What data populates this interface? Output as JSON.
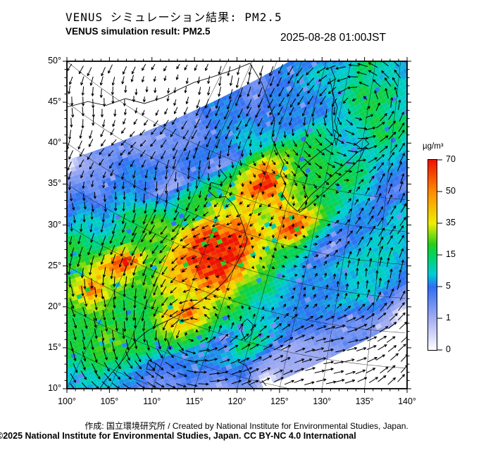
{
  "header": {
    "title_jp": "VENUS シミュレーション結果: PM2.5",
    "title_en": "VENUS simulation result: PM2.5",
    "datetime": "2025-08-28 01:00JST"
  },
  "footer": {
    "attribution": "作成: 国立環境研究所 / Created by National Institute for Environmental Studies, Japan.",
    "copyright": "©2025 National Institute for Environmental Studies, Japan. CC BY-NC 4.0 International"
  },
  "chart_data": {
    "type": "heatmap",
    "title": "VENUS simulation result: PM2.5",
    "variable": "PM2.5",
    "units": "µg/m³",
    "lon_range": [
      100,
      140
    ],
    "lat_range": [
      10,
      50
    ],
    "lon_tick_labels": [
      "100°",
      "105°",
      "110°",
      "115°",
      "120°",
      "125°",
      "130°",
      "135°",
      "140°"
    ],
    "lat_tick_labels": [
      "50°",
      "45°",
      "40°",
      "35°",
      "30°",
      "25°",
      "20°",
      "15°",
      "10°"
    ],
    "colorbar": {
      "label": "µg/m³",
      "ticks": [
        0,
        1,
        5,
        15,
        35,
        50,
        70
      ],
      "stop_values": [
        0,
        1,
        5,
        9,
        15,
        22,
        35,
        50,
        70
      ],
      "stop_colors": [
        "#ffffff",
        "#a3adf2",
        "#2f6ef3",
        "#00ccd8",
        "#00d460",
        "#28cd1c",
        "#eeee00",
        "#ff8c00",
        "#ee1200"
      ]
    },
    "pm25_grid": {
      "levels": {
        ".": 0,
        "a": 1.2,
        "b": 3,
        "c": 6,
        "d": 9.5,
        "e": 18,
        "f": 30,
        "g": 44,
        "h": 58,
        "i": 74
      },
      "rows": [
        "..aab.ab.ba.abbabbbccbbccbbcbaab.a..",
        ".aabbababbabbbcbbbbccbccddccbbbba.a.",
        "a.abbbabcbbcbcccbcccdccccddedccbba.a",
        ".abbcbbcbccdcdcaacabddcccdeddcccbb.a",
        "..bbcccddeeddeedeeefgfeeddeedcccbba.",
        ".abccdcdeeeeeefeeffhifeeddeddccbbba.",
        ".bbccdcdeefgifeghggfgfeeddeedcccbba.",
        ".bccdedeefhffeghiihfgfeeedddcccbbba.",
        "abccdecdeefeefghiigfigeddccccbbbba..",
        ".bccdeeeeeeeeffghgfeedcccbbccbbbaa..",
        "..bcdedeeefeeghffeedcabccddccbbbba..",
        ".abcddcddeeeeffeeddccdddddcddccbba..",
        "..bcccccdddcccdaddccccdddccdcbbba...",
        ".abbbcbccccbbccdedcccdddccddcbba....",
        "..abbbbbccbbbbbcbaabbbcbbbaab.a.....",
        "...aabbaabbaabab.aaabba.ab.a........"
      ]
    },
    "wind": {
      "arrow_color": "#000000",
      "vortices": [
        {
          "x": 0.342,
          "y": 0.852,
          "strength": 30,
          "core": 55,
          "rotation": "ccw"
        },
        {
          "x": 0.87,
          "y": 0.105,
          "strength": 26,
          "core": 70,
          "rotation": "ccw"
        },
        {
          "x": 0.849,
          "y": 0.774,
          "strength": 12,
          "core": 80,
          "rotation": "ccw"
        }
      ],
      "background": {
        "u": 3.2,
        "v": -0.8
      }
    },
    "coastlines": [
      [
        [
          0.0,
          0.14
        ],
        [
          0.062,
          0.123
        ],
        [
          0.114,
          0.135
        ],
        [
          0.172,
          0.114
        ],
        [
          0.228,
          0.129
        ],
        [
          0.284,
          0.11
        ],
        [
          0.325,
          0.088
        ],
        [
          0.373,
          0.065
        ],
        [
          0.424,
          0.049
        ],
        [
          0.491,
          0.026
        ],
        [
          0.538,
          0.006
        ]
      ],
      [
        [
          0.538,
          0.006
        ],
        [
          0.573,
          0.067
        ],
        [
          0.594,
          0.127
        ],
        [
          0.611,
          0.183
        ],
        [
          0.602,
          0.234
        ],
        [
          0.619,
          0.277
        ],
        [
          0.638,
          0.314
        ],
        [
          0.627,
          0.344
        ],
        [
          0.644,
          0.376
        ],
        [
          0.634,
          0.406
        ],
        [
          0.654,
          0.437
        ],
        [
          0.677,
          0.458
        ],
        [
          0.7,
          0.447
        ],
        [
          0.708,
          0.417
        ],
        [
          0.696,
          0.389
        ],
        [
          0.706,
          0.355
        ],
        [
          0.687,
          0.329
        ],
        [
          0.714,
          0.303
        ],
        [
          0.747,
          0.275
        ],
        [
          0.776,
          0.256
        ]
      ],
      [
        [
          0.776,
          0.019
        ],
        [
          0.789,
          0.054
        ],
        [
          0.78,
          0.097
        ],
        [
          0.795,
          0.14
        ],
        [
          0.787,
          0.183
        ],
        [
          0.799,
          0.226
        ],
        [
          0.791,
          0.256
        ],
        [
          0.783,
          0.214
        ],
        [
          0.779,
          0.161
        ],
        [
          0.785,
          0.108
        ],
        [
          0.772,
          0.052
        ]
      ],
      [
        [
          0.683,
          0.462
        ],
        [
          0.708,
          0.443
        ],
        [
          0.735,
          0.419
        ],
        [
          0.762,
          0.394
        ],
        [
          0.789,
          0.368
        ],
        [
          0.816,
          0.344
        ],
        [
          0.841,
          0.32
        ],
        [
          0.863,
          0.295
        ],
        [
          0.874,
          0.269
        ],
        [
          0.855,
          0.277
        ],
        [
          0.828,
          0.303
        ],
        [
          0.801,
          0.329
        ],
        [
          0.774,
          0.355
        ],
        [
          0.747,
          0.381
        ],
        [
          0.72,
          0.406
        ],
        [
          0.698,
          0.432
        ],
        [
          0.681,
          0.454
        ],
        [
          0.683,
          0.462
        ]
      ],
      [
        [
          0.849,
          0.254
        ],
        [
          0.872,
          0.234
        ],
        [
          0.888,
          0.252
        ],
        [
          0.867,
          0.269
        ],
        [
          0.849,
          0.254
        ]
      ],
      [
        [
          0.449,
          0.329
        ],
        [
          0.47,
          0.355
        ],
        [
          0.451,
          0.378
        ],
        [
          0.424,
          0.37
        ],
        [
          0.416,
          0.396
        ],
        [
          0.439,
          0.417
        ],
        [
          0.466,
          0.413
        ],
        [
          0.491,
          0.439
        ],
        [
          0.507,
          0.471
        ],
        [
          0.52,
          0.508
        ],
        [
          0.53,
          0.546
        ],
        [
          0.52,
          0.578
        ],
        [
          0.505,
          0.606
        ],
        [
          0.489,
          0.637
        ],
        [
          0.47,
          0.665
        ],
        [
          0.447,
          0.69
        ],
        [
          0.42,
          0.712
        ],
        [
          0.391,
          0.733
        ],
        [
          0.36,
          0.755
        ],
        [
          0.329,
          0.774
        ],
        [
          0.298,
          0.791
        ],
        [
          0.267,
          0.806
        ],
        [
          0.236,
          0.824
        ],
        [
          0.209,
          0.847
        ],
        [
          0.188,
          0.873
        ],
        [
          0.172,
          0.901
        ],
        [
          0.153,
          0.927
        ],
        [
          0.133,
          0.95
        ],
        [
          0.112,
          0.976
        ],
        [
          0.097,
          1.0
        ]
      ],
      [
        [
          0.53,
          0.787
        ],
        [
          0.547,
          0.804
        ],
        [
          0.542,
          0.834
        ],
        [
          0.524,
          0.852
        ],
        [
          0.513,
          0.824
        ],
        [
          0.518,
          0.798
        ],
        [
          0.53,
          0.787
        ]
      ],
      [
        [
          0.24,
          0.914
        ],
        [
          0.261,
          0.923
        ],
        [
          0.257,
          0.946
        ],
        [
          0.234,
          0.94
        ],
        [
          0.24,
          0.914
        ]
      ],
      [
        [
          0.503,
          0.918
        ],
        [
          0.526,
          0.929
        ],
        [
          0.54,
          0.955
        ],
        [
          0.532,
          0.983
        ],
        [
          0.549,
          1.0
        ]
      ],
      [
        [
          0.573,
          0.974
        ],
        [
          0.586,
          0.991
        ]
      ]
    ]
  }
}
